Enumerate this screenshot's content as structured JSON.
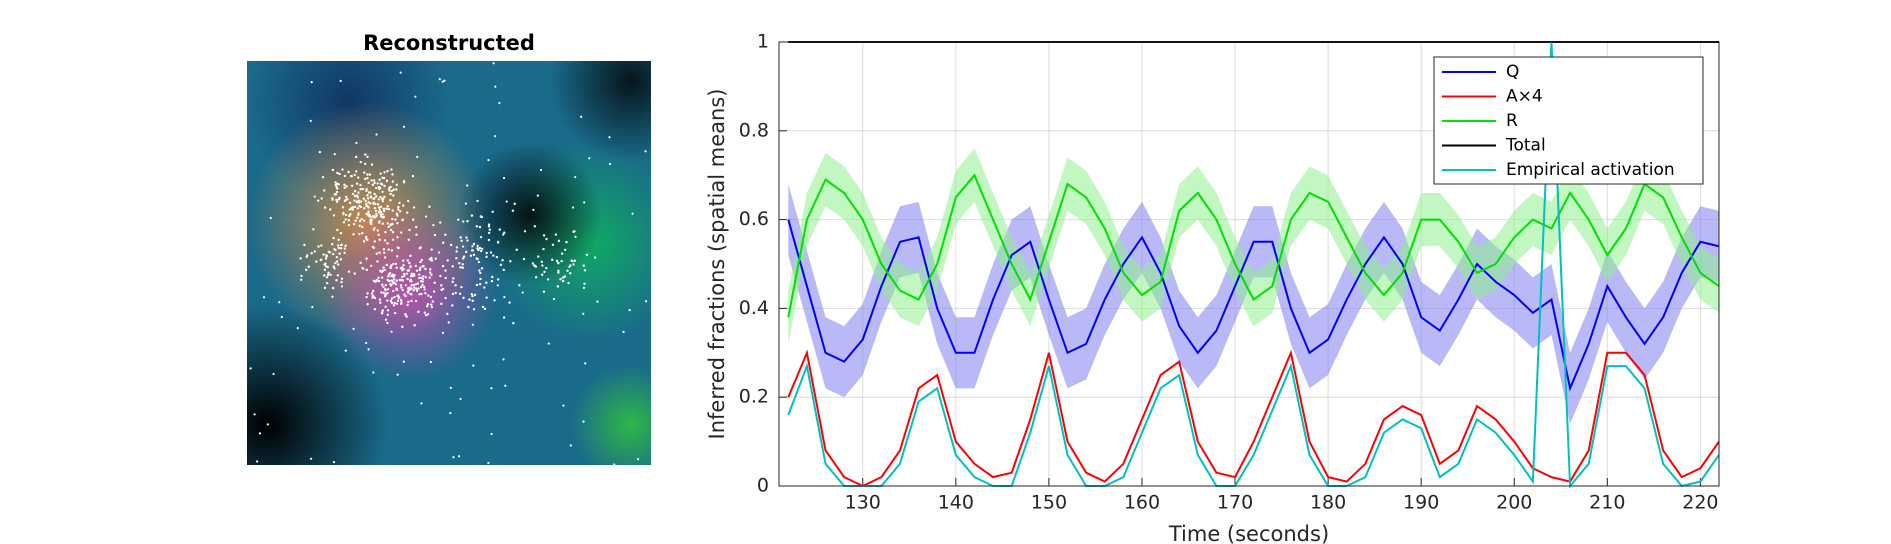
{
  "image_panel": {
    "title": "Reconstructed"
  },
  "chart_data": {
    "type": "line",
    "xlabel": "Time (seconds)",
    "ylabel": "Inferred fractions (spatial means)",
    "xlim": [
      121,
      222
    ],
    "ylim": [
      0,
      1
    ],
    "xticks": [
      130,
      140,
      150,
      160,
      170,
      180,
      190,
      200,
      210,
      220
    ],
    "yticks": [
      0,
      0.2,
      0.4,
      0.6,
      0.8,
      1
    ],
    "grid": true,
    "legend": "upper right",
    "x": [
      122,
      124,
      126,
      128,
      130,
      132,
      134,
      136,
      138,
      140,
      142,
      144,
      146,
      148,
      150,
      152,
      154,
      156,
      158,
      160,
      162,
      164,
      166,
      168,
      170,
      172,
      174,
      176,
      178,
      180,
      182,
      184,
      186,
      188,
      190,
      192,
      194,
      196,
      198,
      200,
      202,
      204,
      206,
      208,
      210,
      212,
      214,
      216,
      218,
      220,
      222
    ],
    "series": [
      {
        "name": "Q",
        "color": "#0000ff",
        "band_color": "#8080f0",
        "values": [
          0.6,
          0.45,
          0.3,
          0.28,
          0.33,
          0.45,
          0.55,
          0.56,
          0.4,
          0.3,
          0.3,
          0.42,
          0.52,
          0.55,
          0.42,
          0.3,
          0.32,
          0.42,
          0.5,
          0.56,
          0.48,
          0.36,
          0.3,
          0.35,
          0.45,
          0.55,
          0.55,
          0.4,
          0.3,
          0.33,
          0.42,
          0.5,
          0.56,
          0.5,
          0.38,
          0.35,
          0.42,
          0.5,
          0.46,
          0.43,
          0.39,
          0.42,
          0.22,
          0.32,
          0.45,
          0.38,
          0.32,
          0.38,
          0.48,
          0.55,
          0.54
        ],
        "lower": [
          0.52,
          0.37,
          0.22,
          0.2,
          0.25,
          0.37,
          0.47,
          0.48,
          0.32,
          0.22,
          0.22,
          0.34,
          0.44,
          0.47,
          0.34,
          0.22,
          0.24,
          0.34,
          0.42,
          0.48,
          0.4,
          0.28,
          0.22,
          0.27,
          0.37,
          0.47,
          0.47,
          0.32,
          0.22,
          0.25,
          0.34,
          0.42,
          0.48,
          0.42,
          0.3,
          0.27,
          0.34,
          0.42,
          0.38,
          0.35,
          0.31,
          0.34,
          0.14,
          0.24,
          0.37,
          0.3,
          0.24,
          0.3,
          0.4,
          0.47,
          0.46
        ],
        "upper": [
          0.68,
          0.53,
          0.38,
          0.36,
          0.41,
          0.53,
          0.63,
          0.64,
          0.48,
          0.38,
          0.38,
          0.5,
          0.6,
          0.63,
          0.5,
          0.38,
          0.4,
          0.5,
          0.58,
          0.64,
          0.56,
          0.44,
          0.38,
          0.43,
          0.53,
          0.63,
          0.63,
          0.48,
          0.38,
          0.41,
          0.5,
          0.58,
          0.64,
          0.58,
          0.46,
          0.43,
          0.5,
          0.58,
          0.54,
          0.51,
          0.47,
          0.5,
          0.3,
          0.4,
          0.53,
          0.46,
          0.4,
          0.46,
          0.56,
          0.63,
          0.62
        ]
      },
      {
        "name": "A×4",
        "color": "#ff0000",
        "values": [
          0.2,
          0.3,
          0.08,
          0.02,
          0.0,
          0.02,
          0.08,
          0.22,
          0.25,
          0.1,
          0.05,
          0.02,
          0.03,
          0.15,
          0.3,
          0.1,
          0.03,
          0.01,
          0.05,
          0.15,
          0.25,
          0.28,
          0.1,
          0.03,
          0.02,
          0.1,
          0.2,
          0.3,
          0.1,
          0.02,
          0.01,
          0.05,
          0.15,
          0.18,
          0.16,
          0.05,
          0.08,
          0.18,
          0.15,
          0.1,
          0.04,
          0.02,
          0.01,
          0.08,
          0.3,
          0.3,
          0.25,
          0.08,
          0.02,
          0.04,
          0.1
        ]
      },
      {
        "name": "R",
        "color": "#00e000",
        "band_color": "#90f090",
        "values": [
          0.38,
          0.6,
          0.69,
          0.66,
          0.6,
          0.5,
          0.44,
          0.42,
          0.5,
          0.65,
          0.7,
          0.6,
          0.5,
          0.42,
          0.55,
          0.68,
          0.65,
          0.58,
          0.48,
          0.43,
          0.46,
          0.62,
          0.66,
          0.6,
          0.5,
          0.42,
          0.45,
          0.6,
          0.66,
          0.64,
          0.56,
          0.48,
          0.43,
          0.48,
          0.6,
          0.6,
          0.55,
          0.48,
          0.5,
          0.56,
          0.6,
          0.58,
          0.66,
          0.6,
          0.52,
          0.58,
          0.68,
          0.65,
          0.56,
          0.48,
          0.45
        ],
        "lower": [
          0.32,
          0.54,
          0.63,
          0.6,
          0.54,
          0.44,
          0.38,
          0.36,
          0.44,
          0.59,
          0.64,
          0.54,
          0.44,
          0.36,
          0.49,
          0.62,
          0.59,
          0.52,
          0.42,
          0.37,
          0.4,
          0.56,
          0.6,
          0.54,
          0.44,
          0.36,
          0.39,
          0.54,
          0.6,
          0.58,
          0.5,
          0.42,
          0.37,
          0.42,
          0.54,
          0.54,
          0.49,
          0.42,
          0.44,
          0.5,
          0.54,
          0.52,
          0.6,
          0.54,
          0.46,
          0.52,
          0.62,
          0.59,
          0.5,
          0.42,
          0.39
        ],
        "upper": [
          0.44,
          0.66,
          0.75,
          0.72,
          0.66,
          0.56,
          0.5,
          0.48,
          0.56,
          0.71,
          0.76,
          0.66,
          0.56,
          0.48,
          0.61,
          0.74,
          0.71,
          0.64,
          0.54,
          0.49,
          0.52,
          0.68,
          0.72,
          0.66,
          0.56,
          0.48,
          0.51,
          0.66,
          0.72,
          0.7,
          0.62,
          0.54,
          0.49,
          0.54,
          0.66,
          0.66,
          0.61,
          0.54,
          0.56,
          0.62,
          0.66,
          0.64,
          0.72,
          0.66,
          0.58,
          0.64,
          0.74,
          0.71,
          0.62,
          0.54,
          0.51
        ]
      },
      {
        "name": "Total",
        "color": "#000000",
        "values": [
          1,
          1,
          1,
          1,
          1,
          1,
          1,
          1,
          1,
          1,
          1,
          1,
          1,
          1,
          1,
          1,
          1,
          1,
          1,
          1,
          1,
          1,
          1,
          1,
          1,
          1,
          1,
          1,
          1,
          1,
          1,
          1,
          1,
          1,
          1,
          1,
          1,
          1,
          1,
          1,
          1,
          1,
          1,
          1,
          1,
          1,
          1,
          1,
          1,
          1,
          1
        ]
      },
      {
        "name": "Empirical activation",
        "color": "#00c0c0",
        "values": [
          0.16,
          0.27,
          0.05,
          0,
          0,
          0,
          0.05,
          0.19,
          0.22,
          0.07,
          0.02,
          0,
          0,
          0.12,
          0.27,
          0.07,
          0,
          0,
          0.02,
          0.12,
          0.22,
          0.25,
          0.07,
          0,
          0,
          0.07,
          0.17,
          0.27,
          0.07,
          0,
          0,
          0.02,
          0.12,
          0.15,
          0.13,
          0.02,
          0.05,
          0.15,
          0.12,
          0.07,
          0.01,
          1,
          0,
          0.05,
          0.27,
          0.27,
          0.22,
          0.05,
          0,
          0.01,
          0.07
        ]
      }
    ]
  }
}
